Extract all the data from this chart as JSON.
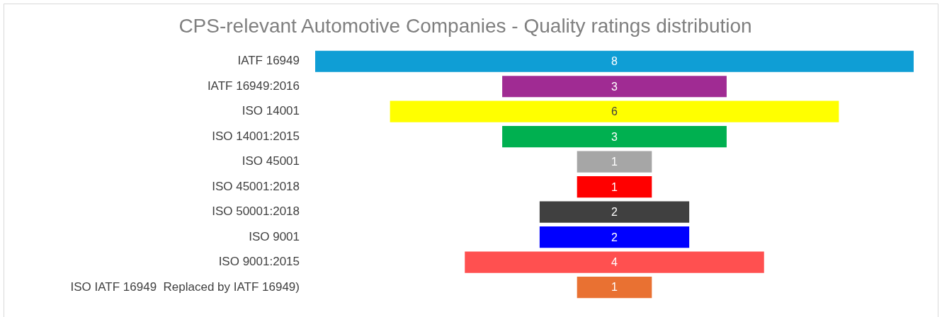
{
  "chart_data": {
    "type": "other",
    "title": "CPS-relevant Automotive Companies - Quality ratings distribution",
    "categories": [
      "IATF 16949",
      "IATF 16949:2016",
      "ISO 14001",
      "ISO 14001:2015",
      "ISO 45001",
      "ISO 45001:2018",
      "ISO 50001:2018",
      "ISO 9001",
      "ISO 9001:2015",
      "ISO IATF 16949  Replaced by IATF 16949)"
    ],
    "values": [
      8,
      3,
      6,
      3,
      1,
      1,
      2,
      2,
      4,
      1
    ],
    "colors": [
      "#0f9ed5",
      "#a02b93",
      "#ffff00",
      "#00b050",
      "#a6a6a6",
      "#ff0000",
      "#404040",
      "#0000ff",
      "#ff5050",
      "#e97132"
    ],
    "data_labels": true
  }
}
